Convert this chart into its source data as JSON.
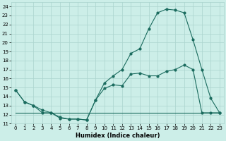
{
  "xlabel": "Humidex (Indice chaleur)",
  "bg_color": "#cceee8",
  "grid_color": "#aad4ce",
  "line_color": "#1a6b5e",
  "xlim": [
    -0.5,
    23.5
  ],
  "ylim": [
    11,
    24.5
  ],
  "yticks": [
    11,
    12,
    13,
    14,
    15,
    16,
    17,
    18,
    19,
    20,
    21,
    22,
    23,
    24
  ],
  "xticks": [
    0,
    1,
    2,
    3,
    4,
    5,
    6,
    7,
    8,
    9,
    10,
    11,
    12,
    13,
    14,
    15,
    16,
    17,
    18,
    19,
    20,
    21,
    22,
    23
  ],
  "series1_x": [
    0,
    1,
    2,
    3,
    4,
    5,
    6,
    7,
    8,
    9,
    10,
    11,
    12,
    13,
    14,
    15,
    16,
    17,
    18,
    19,
    20,
    21,
    22,
    23
  ],
  "series1_y": [
    14.7,
    13.4,
    13.0,
    12.2,
    12.2,
    11.6,
    11.5,
    11.5,
    11.4,
    13.6,
    14.9,
    15.3,
    15.2,
    16.5,
    16.6,
    16.3,
    16.3,
    16.8,
    17.0,
    17.5,
    17.0,
    12.2,
    12.2,
    12.2
  ],
  "series2_x": [
    0,
    1,
    2,
    3,
    4,
    5,
    6,
    7,
    8,
    9,
    10,
    11,
    12,
    13,
    14,
    15,
    16,
    17,
    18,
    19,
    20,
    21,
    22,
    23
  ],
  "series2_y": [
    14.7,
    13.4,
    13.0,
    12.5,
    12.2,
    11.7,
    11.5,
    11.5,
    11.4,
    13.6,
    15.5,
    16.3,
    17.0,
    18.8,
    19.3,
    21.5,
    23.3,
    23.7,
    23.6,
    23.3,
    20.3,
    17.0,
    13.8,
    12.2
  ],
  "series3_x": [
    0,
    1,
    2,
    3,
    4,
    5,
    6,
    7,
    8,
    9,
    10,
    11,
    12,
    13,
    14,
    15,
    16,
    17,
    18,
    19,
    20,
    21,
    22,
    23
  ],
  "series3_y": [
    12.2,
    12.2,
    12.2,
    12.2,
    12.2,
    12.2,
    12.2,
    12.2,
    12.2,
    12.2,
    12.2,
    12.2,
    12.2,
    12.2,
    12.2,
    12.2,
    12.2,
    12.2,
    12.2,
    12.2,
    12.2,
    12.2,
    12.2,
    12.2
  ],
  "marker_size": 2.0,
  "line_width": 0.8,
  "font_size_axis": 6,
  "font_size_tick": 5
}
